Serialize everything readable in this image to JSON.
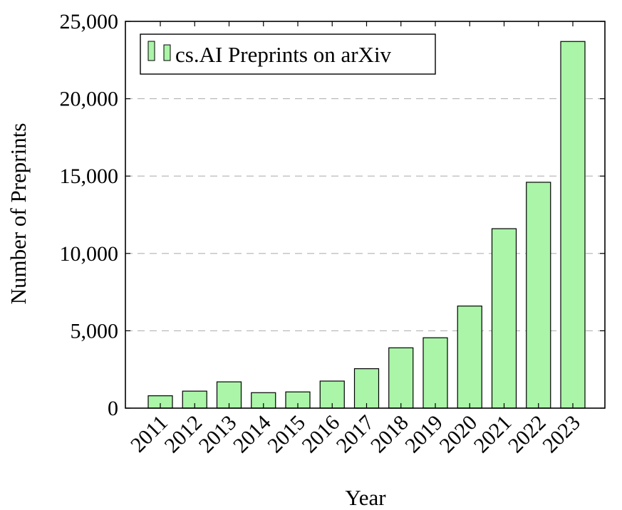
{
  "chart_data": {
    "type": "bar",
    "categories": [
      "2011",
      "2012",
      "2013",
      "2014",
      "2015",
      "2016",
      "2017",
      "2018",
      "2019",
      "2020",
      "2021",
      "2022",
      "2023"
    ],
    "series": [
      {
        "name": "cs.AI Preprints on arXiv",
        "values": [
          800,
          1100,
          1700,
          1000,
          1050,
          1750,
          2550,
          3900,
          4550,
          6600,
          11600,
          14600,
          23700
        ]
      }
    ],
    "xlabel": "Year",
    "ylabel": "Number of Preprints",
    "ylim": [
      0,
      25000
    ],
    "yticks": [
      0,
      5000,
      10000,
      15000,
      20000,
      25000
    ],
    "ytick_labels": [
      "0",
      "5,000",
      "10,000",
      "15,000",
      "20,000",
      "25,000"
    ],
    "grid": "horizontal dashed",
    "legend_position": "top-left",
    "colors": {
      "bar_fill": "#aaf5a8",
      "bar_stroke": "#000000",
      "grid": "#b3b3b3"
    }
  }
}
